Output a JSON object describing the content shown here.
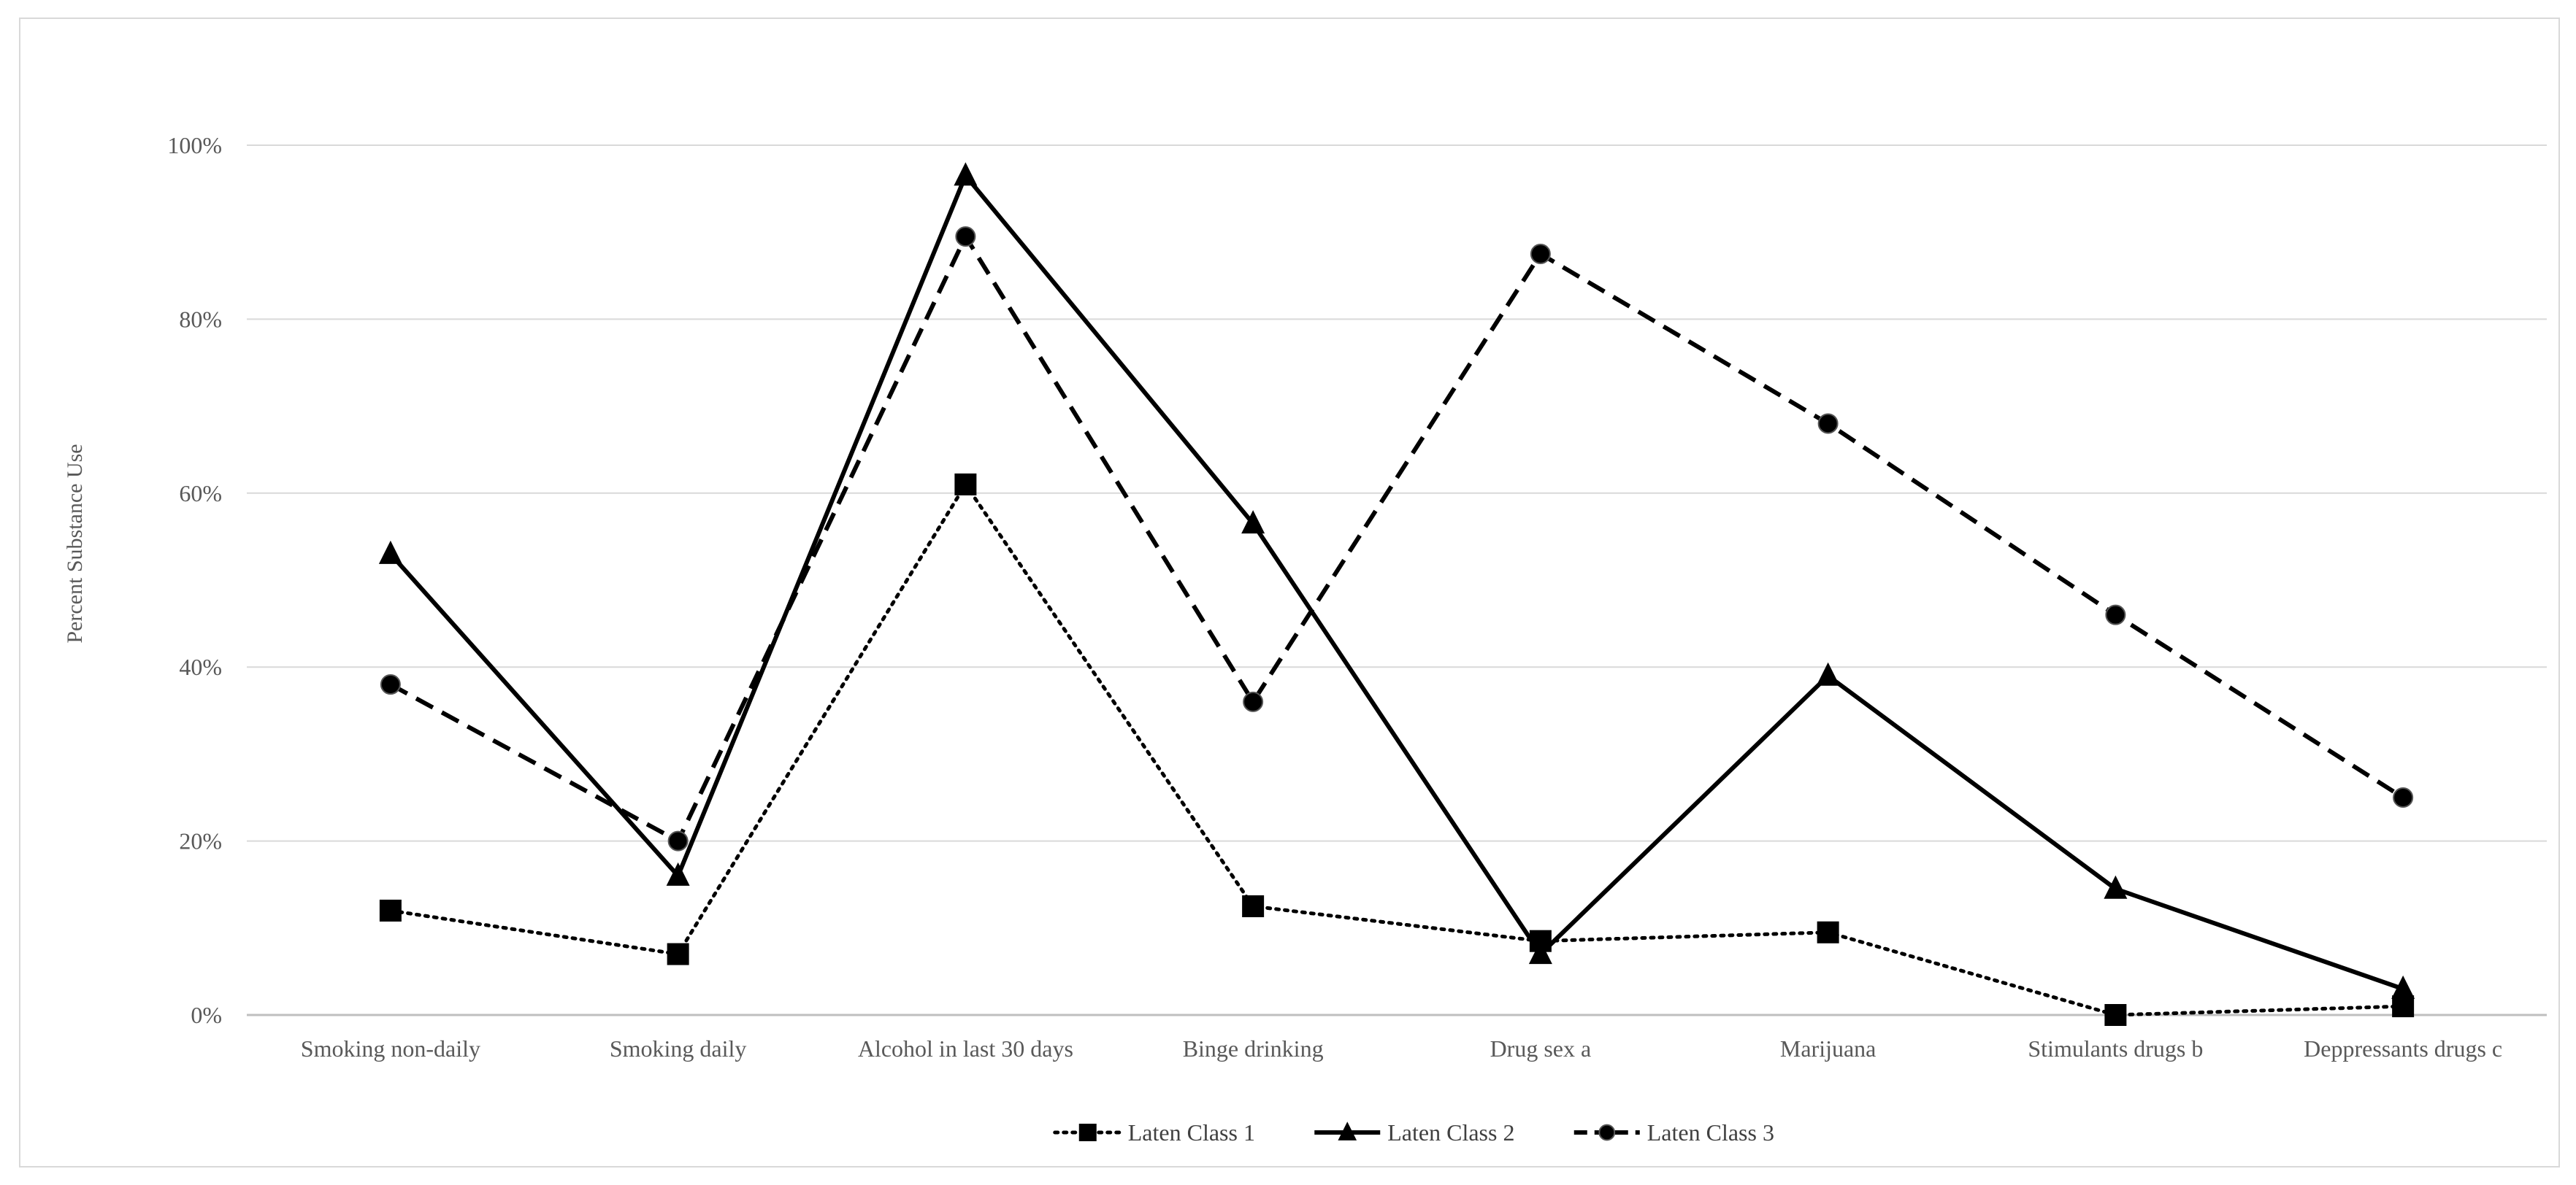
{
  "chart_data": {
    "type": "line",
    "title": "",
    "xlabel": "",
    "ylabel": "Percent Substance Use",
    "ylim": [
      0,
      100
    ],
    "y_ticks": [
      "0%",
      "20%",
      "40%",
      "60%",
      "80%",
      "100%"
    ],
    "y_tick_values": [
      0,
      20,
      40,
      60,
      80,
      100
    ],
    "categories": [
      "Smoking non-daily",
      "Smoking daily",
      "Alcohol in last 30 days",
      "Binge drinking",
      "Drug sex a",
      "Marijuana",
      "Stimulants drugs b",
      "Deppressants drugs c"
    ],
    "grid": true,
    "legend_position": "bottom",
    "series": [
      {
        "name": "Laten Class 1",
        "values": [
          12,
          7,
          61,
          12.5,
          8.5,
          9.5,
          0,
          1
        ],
        "line_style": "dotted",
        "marker": "square",
        "color": "#000000"
      },
      {
        "name": "Laten Class 2",
        "values": [
          53,
          16,
          96.5,
          56.5,
          7,
          39,
          14.5,
          3
        ],
        "line_style": "solid",
        "marker": "triangle",
        "color": "#000000"
      },
      {
        "name": "Laten Class 3",
        "values": [
          38,
          20,
          89.5,
          36,
          87.5,
          68,
          46,
          25
        ],
        "line_style": "dashed",
        "marker": "circle",
        "color": "#000000"
      }
    ],
    "colors": {
      "grid": "#d9d9d9",
      "axis": "#bfbfbf",
      "text": "#595959",
      "series": "#000000"
    }
  }
}
